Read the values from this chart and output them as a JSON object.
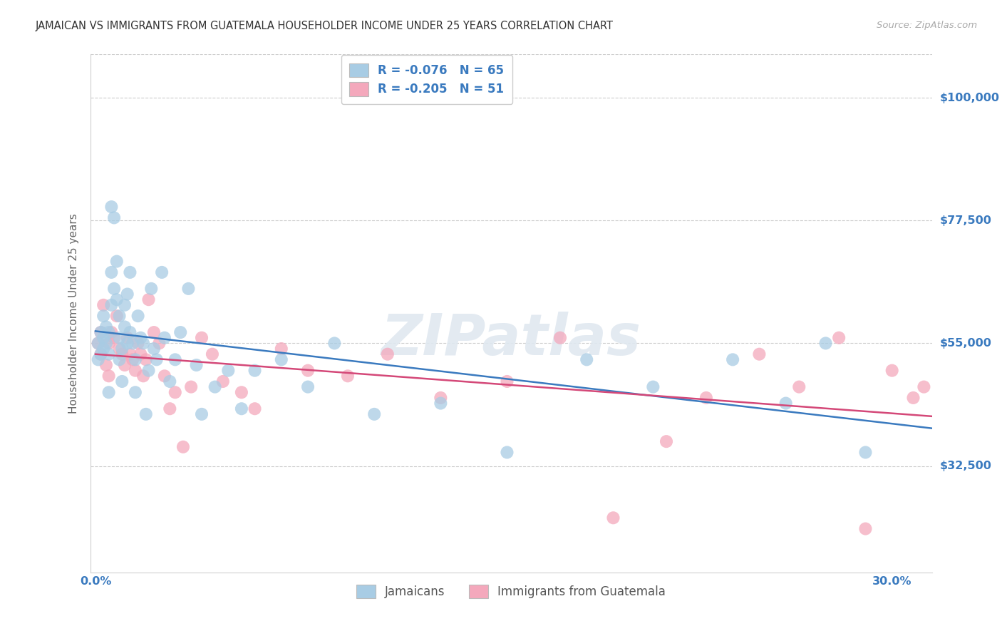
{
  "title": "JAMAICAN VS IMMIGRANTS FROM GUATEMALA HOUSEHOLDER INCOME UNDER 25 YEARS CORRELATION CHART",
  "source": "Source: ZipAtlas.com",
  "ylabel": "Householder Income Under 25 years",
  "ytick_labels": [
    "$32,500",
    "$55,000",
    "$77,500",
    "$100,000"
  ],
  "ytick_values": [
    32500,
    55000,
    77500,
    100000
  ],
  "ymin": 13000,
  "ymax": 108000,
  "xmin": -0.002,
  "xmax": 0.315,
  "legend_label_blue": "Jamaicans",
  "legend_label_pink": "Immigrants from Guatemala",
  "blue_color": "#a8cce4",
  "pink_color": "#f4a8bc",
  "blue_line_color": "#3a7abf",
  "pink_line_color": "#d44878",
  "axis_tick_color": "#3a7abf",
  "watermark": "ZIPatlas",
  "blue_R": "-0.076",
  "blue_N": "65",
  "pink_R": "-0.205",
  "pink_N": "51",
  "blue_x": [
    0.001,
    0.001,
    0.002,
    0.002,
    0.003,
    0.003,
    0.003,
    0.004,
    0.004,
    0.005,
    0.005,
    0.005,
    0.006,
    0.006,
    0.006,
    0.007,
    0.007,
    0.008,
    0.008,
    0.009,
    0.009,
    0.009,
    0.01,
    0.01,
    0.011,
    0.011,
    0.012,
    0.012,
    0.013,
    0.013,
    0.014,
    0.015,
    0.015,
    0.016,
    0.017,
    0.018,
    0.019,
    0.02,
    0.021,
    0.022,
    0.023,
    0.025,
    0.026,
    0.028,
    0.03,
    0.032,
    0.035,
    0.038,
    0.04,
    0.045,
    0.05,
    0.055,
    0.06,
    0.07,
    0.08,
    0.09,
    0.105,
    0.13,
    0.155,
    0.185,
    0.21,
    0.24,
    0.26,
    0.275,
    0.29
  ],
  "blue_y": [
    55000,
    52000,
    57000,
    53000,
    56000,
    60000,
    54000,
    55000,
    58000,
    53000,
    57000,
    46000,
    80000,
    68000,
    62000,
    78000,
    65000,
    70000,
    63000,
    56000,
    60000,
    52000,
    54000,
    48000,
    58000,
    62000,
    64000,
    55000,
    68000,
    57000,
    55000,
    52000,
    46000,
    60000,
    56000,
    55000,
    42000,
    50000,
    65000,
    54000,
    52000,
    68000,
    56000,
    48000,
    52000,
    57000,
    65000,
    51000,
    42000,
    47000,
    50000,
    43000,
    50000,
    52000,
    47000,
    55000,
    42000,
    44000,
    35000,
    52000,
    47000,
    52000,
    44000,
    55000,
    35000
  ],
  "pink_x": [
    0.001,
    0.002,
    0.002,
    0.003,
    0.004,
    0.005,
    0.005,
    0.006,
    0.007,
    0.008,
    0.009,
    0.01,
    0.011,
    0.012,
    0.013,
    0.014,
    0.015,
    0.016,
    0.017,
    0.018,
    0.019,
    0.02,
    0.022,
    0.024,
    0.026,
    0.028,
    0.03,
    0.033,
    0.036,
    0.04,
    0.044,
    0.048,
    0.055,
    0.06,
    0.07,
    0.08,
    0.095,
    0.11,
    0.13,
    0.155,
    0.175,
    0.195,
    0.215,
    0.23,
    0.25,
    0.265,
    0.28,
    0.29,
    0.3,
    0.308,
    0.312
  ],
  "pink_y": [
    55000,
    57000,
    53000,
    62000,
    51000,
    55000,
    49000,
    57000,
    56000,
    60000,
    54000,
    53000,
    51000,
    56000,
    53000,
    52000,
    50000,
    55000,
    53000,
    49000,
    52000,
    63000,
    57000,
    55000,
    49000,
    43000,
    46000,
    36000,
    47000,
    56000,
    53000,
    48000,
    46000,
    43000,
    54000,
    50000,
    49000,
    53000,
    45000,
    48000,
    56000,
    23000,
    37000,
    45000,
    53000,
    47000,
    56000,
    21000,
    50000,
    45000,
    47000
  ]
}
